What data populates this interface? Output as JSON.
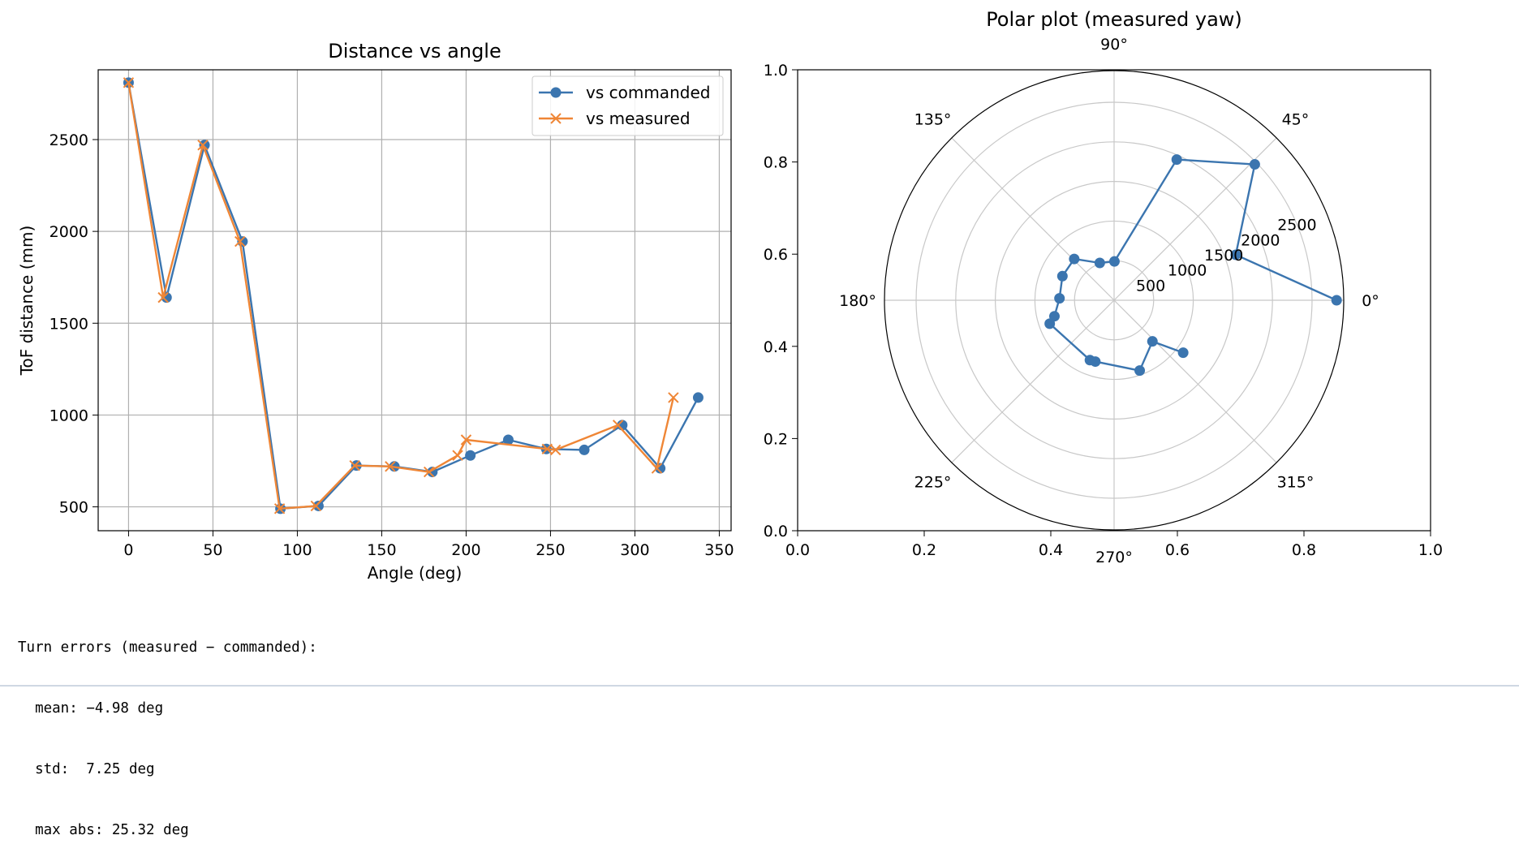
{
  "chart_data": [
    {
      "type": "line",
      "title": "Distance vs angle",
      "xlabel": "Angle (deg)",
      "ylabel": "ToF distance (mm)",
      "xlim": [
        -18,
        357
      ],
      "ylim": [
        370,
        2880
      ],
      "xticks": [
        0,
        50,
        100,
        150,
        200,
        250,
        300,
        350
      ],
      "yticks": [
        500,
        1000,
        1500,
        2000,
        2500
      ],
      "grid": true,
      "legend": "top-right",
      "series": [
        {
          "name": "vs commanded",
          "color": "#3b75af",
          "marker": "circle",
          "x": [
            0,
            22.5,
            45,
            67.5,
            90,
            112.5,
            135,
            157.5,
            180,
            202.5,
            225,
            247.5,
            270,
            292.5,
            315,
            337.5
          ],
          "y": [
            2810,
            1640,
            2470,
            1945,
            490,
            505,
            725,
            720,
            690,
            780,
            865,
            815,
            810,
            945,
            710,
            1095
          ]
        },
        {
          "name": "vs measured",
          "color": "#ef8636",
          "marker": "x",
          "x": [
            0,
            20.5,
            44,
            66,
            89.5,
            111,
            134,
            155,
            178,
            195,
            200,
            248,
            253,
            290,
            313,
            322.8
          ],
          "y": [
            2810,
            1640,
            2470,
            1945,
            490,
            505,
            725,
            720,
            690,
            780,
            865,
            815,
            810,
            945,
            710,
            1095
          ]
        }
      ]
    },
    {
      "type": "scatter",
      "projection": "polar",
      "title": "Polar plot (measured yaw)",
      "rlim": [
        0,
        2900
      ],
      "rticks": [
        500,
        1000,
        1500,
        2000,
        2500
      ],
      "theta_ticks": [
        "0°",
        "45°",
        "90°",
        "135°",
        "180°",
        "225°",
        "270°",
        "315°"
      ],
      "frame_xticks": [
        "0.0",
        "0.2",
        "0.4",
        "0.6",
        "0.8",
        "1.0"
      ],
      "frame_yticks": [
        "0.0",
        "0.2",
        "0.4",
        "0.6",
        "0.8",
        "1.0"
      ],
      "grid": true,
      "series": [
        {
          "color": "#3b75af",
          "marker": "circle",
          "theta_deg": [
            0,
            20.5,
            44,
            66,
            89.5,
            111,
            134,
            155,
            178,
            195,
            200,
            248,
            253,
            290,
            313,
            322.8
          ],
          "r": [
            2810,
            1640,
            2470,
            1945,
            490,
            505,
            725,
            720,
            690,
            780,
            865,
            815,
            810,
            945,
            710,
            1095
          ]
        }
      ]
    }
  ],
  "output": {
    "lines": [
      "Turn errors (measured − commanded):",
      "  mean: −4.98 deg",
      "  std:  7.25 deg",
      "  max abs: 25.32 deg"
    ]
  }
}
